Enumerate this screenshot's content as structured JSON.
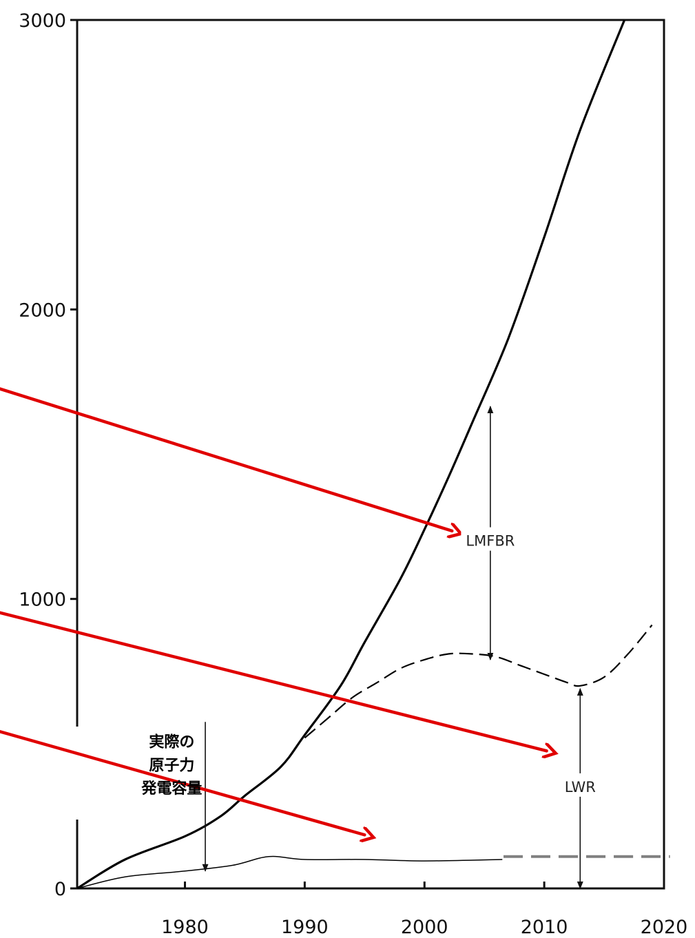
{
  "chart_data": {
    "type": "line",
    "xlim": [
      1971,
      2020
    ],
    "ylim": [
      0,
      3000
    ],
    "x_ticks": [
      {
        "value": 1980,
        "label": "1980"
      },
      {
        "value": 1990,
        "label": "1990"
      },
      {
        "value": 2000,
        "label": "2000"
      },
      {
        "value": 2010,
        "label": "2010"
      },
      {
        "value": 2020,
        "label": "2020"
      }
    ],
    "y_ticks": [
      {
        "value": 0,
        "label": "0"
      },
      {
        "value": 1000,
        "label": "1000"
      },
      {
        "value": 2000,
        "label": "2000"
      },
      {
        "value": 3000,
        "label": "3000"
      }
    ],
    "series": [
      {
        "style": "solid-thick",
        "x": [
          1971,
          1975,
          1980,
          1983,
          1985,
          1988,
          1990,
          1993,
          1995,
          1998,
          2000,
          2002,
          2004,
          2007,
          2010,
          2013,
          2016.7
        ],
        "y": [
          0,
          100,
          180,
          250,
          320,
          420,
          530,
          700,
          850,
          1070,
          1240,
          1420,
          1610,
          1900,
          2250,
          2620,
          3000
        ]
      },
      {
        "style": "dashed",
        "x": [
          1990,
          1992,
          1994,
          1996,
          1998,
          2000,
          2002,
          2004,
          2006,
          2008,
          2010,
          2012,
          2013,
          2015,
          2017,
          2019
        ],
        "y": [
          520,
          590,
          660,
          710,
          760,
          790,
          810,
          810,
          800,
          770,
          740,
          710,
          700,
          730,
          810,
          910
        ]
      },
      {
        "style": "solid-thin",
        "x": [
          1971,
          1975,
          1980,
          1984,
          1987,
          1990,
          1995,
          2000,
          2006.5
        ],
        "y": [
          0,
          40,
          60,
          80,
          110,
          100,
          100,
          95,
          100
        ]
      },
      {
        "style": "grey-dashed",
        "x": [
          2006.6,
          2020.5
        ],
        "y": [
          110,
          110
        ]
      }
    ],
    "annotations": [
      {
        "text": "LMFBR",
        "x": 2005.5,
        "y": 1200
      },
      {
        "text": "LWR",
        "x": 2013.0,
        "y": 350
      },
      {
        "text": "実際の",
        "x": 1978.9,
        "y": 505
      },
      {
        "text": "原子力",
        "x": 1978.9,
        "y": 425
      },
      {
        "text": "発電容量",
        "x": 1978.9,
        "y": 345
      }
    ],
    "double_arrows": [
      {
        "x": 2005.5,
        "y_top": 1665,
        "y_bottom": 790
      },
      {
        "x": 2013.0,
        "y_top": 690,
        "y_bottom": 0
      }
    ],
    "down_arrows": [
      {
        "x": 1981.7,
        "y_from": 575,
        "y_to": 60
      }
    ],
    "red_arrows": [
      {
        "from": [
          1960,
          1785
        ],
        "to": [
          2002.3,
          1235
        ]
      },
      {
        "from": [
          1960,
          1000
        ],
        "to": [
          2010.2,
          475
        ]
      },
      {
        "from": [
          1960,
          595
        ],
        "to": [
          1995.0,
          185
        ]
      }
    ]
  }
}
